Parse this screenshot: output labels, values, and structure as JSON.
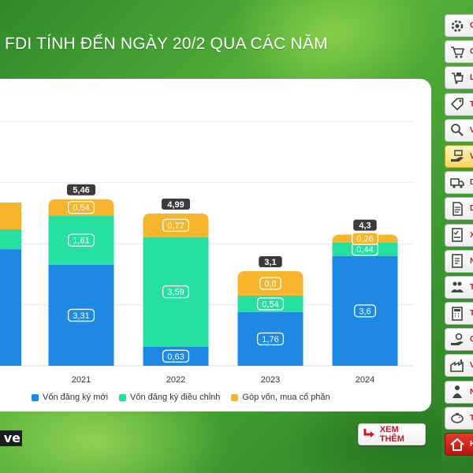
{
  "header": {
    "title": "FDI TÍNH ĐẾN NGÀY 20/2 QUA CÁC NĂM"
  },
  "colors": {
    "new": "#1e88e5",
    "adjusted": "#26e0a0",
    "contribution": "#f6b52a",
    "total_badge": "#3b3b3b"
  },
  "chart_data": {
    "type": "bar",
    "stacked": true,
    "categories": [
      "2021",
      "2022",
      "2023",
      "2024"
    ],
    "series": [
      {
        "name": "Vốn đăng ký mới",
        "values": [
          3.31,
          0.63,
          1.76,
          3.6
        ],
        "labels": [
          "3,31",
          "0,63",
          "1,76",
          "3,6"
        ]
      },
      {
        "name": "Vốn đăng ký điều chỉnh",
        "values": [
          1.61,
          3.59,
          0.54,
          0.44
        ],
        "labels": [
          "1,61",
          "3,59",
          "0,54",
          "0,44"
        ]
      },
      {
        "name": "Góp vốn, mua cổ phần",
        "values": [
          0.54,
          0.77,
          0.8,
          0.26
        ],
        "labels": [
          "0,54",
          "0,77",
          "0,8",
          "0,26"
        ]
      }
    ],
    "totals": [
      5.46,
      4.99,
      3.1,
      4.3
    ],
    "total_labels": [
      "5,46",
      "4,99",
      "3,1",
      "4,3"
    ],
    "ylim": [
      0,
      8
    ],
    "grid": true,
    "legend_position": "bottom"
  },
  "legend": {
    "items": [
      "Vốn đăng ký mới",
      "Vốn đăng ký điều chỉnh",
      "Góp vốn, mua cổ phần"
    ]
  },
  "footer": {
    "brand_text": "ve",
    "more_label": "XEM THÊM"
  },
  "sidebar": {
    "items": [
      {
        "icon": "gear-icon",
        "letter": "C"
      },
      {
        "icon": "cart-icon",
        "letter": "C"
      },
      {
        "icon": "shopping-cart-icon",
        "letter": "L"
      },
      {
        "icon": "price-tag-icon",
        "letter": "T"
      },
      {
        "icon": "magnifier-icon",
        "letter": "V"
      },
      {
        "icon": "money-hand-icon",
        "letter": "V",
        "active": true
      },
      {
        "icon": "truck-icon",
        "letter": "D"
      },
      {
        "icon": "document-icon",
        "letter": "D"
      },
      {
        "icon": "checklist-icon",
        "letter": "X"
      },
      {
        "icon": "report-icon",
        "letter": "N"
      },
      {
        "icon": "people-icon",
        "letter": "T"
      },
      {
        "icon": "calculator-icon",
        "letter": "T"
      },
      {
        "icon": "coin-hand-icon",
        "letter": "C"
      },
      {
        "icon": "factory-icon",
        "letter": "V"
      },
      {
        "icon": "worker-icon",
        "letter": "N"
      },
      {
        "icon": "piggy-bank-icon",
        "letter": "T"
      },
      {
        "icon": "home-icon",
        "letter": "H",
        "home": true
      }
    ]
  }
}
